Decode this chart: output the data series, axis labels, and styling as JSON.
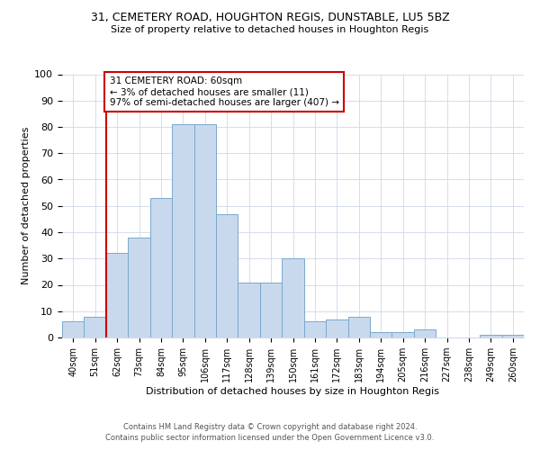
{
  "title_line1": "31, CEMETERY ROAD, HOUGHTON REGIS, DUNSTABLE, LU5 5BZ",
  "title_line2": "Size of property relative to detached houses in Houghton Regis",
  "xlabel": "Distribution of detached houses by size in Houghton Regis",
  "ylabel": "Number of detached properties",
  "bin_labels": [
    "40sqm",
    "51sqm",
    "62sqm",
    "73sqm",
    "84sqm",
    "95sqm",
    "106sqm",
    "117sqm",
    "128sqm",
    "139sqm",
    "150sqm",
    "161sqm",
    "172sqm",
    "183sqm",
    "194sqm",
    "205sqm",
    "216sqm",
    "227sqm",
    "238sqm",
    "249sqm",
    "260sqm"
  ],
  "bar_heights": [
    6,
    8,
    32,
    38,
    53,
    81,
    81,
    47,
    21,
    21,
    30,
    6,
    7,
    8,
    2,
    2,
    3,
    0,
    0,
    1,
    1
  ],
  "bar_color": "#c9d9ed",
  "bar_edge_color": "#7aa8cc",
  "subject_line_color": "#cc0000",
  "annotation_text": "31 CEMETERY ROAD: 60sqm\n← 3% of detached houses are smaller (11)\n97% of semi-detached houses are larger (407) →",
  "annotation_box_color": "#ffffff",
  "annotation_box_edge_color": "#cc0000",
  "ylim": [
    0,
    100
  ],
  "yticks": [
    0,
    10,
    20,
    30,
    40,
    50,
    60,
    70,
    80,
    90,
    100
  ],
  "footer_line1": "Contains HM Land Registry data © Crown copyright and database right 2024.",
  "footer_line2": "Contains public sector information licensed under the Open Government Licence v3.0.",
  "background_color": "#ffffff",
  "grid_color": "#d0d8e8"
}
